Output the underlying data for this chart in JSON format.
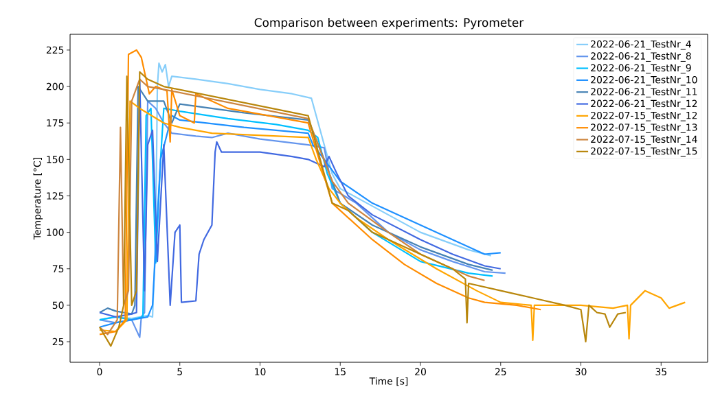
{
  "chart_data": {
    "type": "line",
    "title": "Comparison between experiments: Pyrometer",
    "xlabel": "Time [s]",
    "ylabel": "Temperature [°C]",
    "xlim": [
      -1.84,
      37.9
    ],
    "ylim": [
      10.9,
      235.8
    ],
    "xticks": [
      0,
      5,
      10,
      15,
      20,
      25,
      30,
      35
    ],
    "yticks": [
      25,
      50,
      75,
      100,
      125,
      150,
      175,
      200,
      225
    ],
    "legend": "top right",
    "series": [
      {
        "name": "2022-06-21_TestNr_4",
        "color": "#87cefa",
        "x": [
          0,
          1,
          2,
          3,
          3.3,
          3.5,
          3.6,
          3.7,
          3.9,
          4.1,
          4.3,
          4.5,
          6,
          8,
          10,
          12,
          13.2,
          13.5,
          14,
          14.5,
          15,
          16,
          18,
          20,
          22,
          23,
          24.4
        ],
        "values": [
          40,
          42,
          41,
          43,
          42,
          100,
          200,
          216,
          210,
          215,
          200,
          207,
          205,
          202,
          198,
          195,
          192,
          180,
          160,
          140,
          130,
          124,
          112,
          100,
          92,
          88,
          84
        ]
      },
      {
        "name": "2022-06-21_TestNr_8",
        "color": "#6495ed",
        "x": [
          0,
          1,
          2,
          2.5,
          2.6,
          2.8,
          3.0,
          3.5,
          4.0,
          4.5,
          6,
          7,
          8,
          10,
          13,
          14,
          14.5,
          16,
          18,
          20,
          22,
          24,
          25.3
        ],
        "values": [
          40,
          38,
          40,
          28,
          42,
          45,
          190,
          185,
          175,
          168,
          166,
          165,
          168,
          164,
          160,
          158,
          130,
          120,
          100,
          88,
          80,
          73,
          72
        ]
      },
      {
        "name": "2022-06-21_TestNr_9",
        "color": "#00bfff",
        "x": [
          0,
          1,
          2,
          2.7,
          2.9,
          3.2,
          3.5,
          3.8,
          4.0,
          5,
          8,
          11,
          13,
          13.6,
          14.2,
          15,
          17,
          20,
          23,
          24.5
        ],
        "values": [
          40,
          42,
          40,
          42,
          180,
          185,
          79,
          150,
          185,
          183,
          178,
          174,
          170,
          165,
          140,
          120,
          100,
          80,
          72,
          70
        ]
      },
      {
        "name": "2022-06-21_TestNr_10",
        "color": "#1e90ff",
        "x": [
          0,
          1,
          2,
          3,
          3.3,
          3.8,
          4.5,
          5,
          9,
          13,
          13.3,
          14,
          15,
          17,
          20,
          22,
          24,
          25
        ],
        "values": [
          35,
          38,
          40,
          42,
          50,
          150,
          180,
          177,
          172,
          168,
          160,
          150,
          135,
          120,
          105,
          95,
          85,
          86
        ]
      },
      {
        "name": "2022-06-21_TestNr_11",
        "color": "#4682b4",
        "x": [
          0,
          0.5,
          1,
          2,
          2.2,
          2.4,
          2.7,
          3,
          4,
          4.5,
          5,
          9,
          13,
          14,
          15,
          17,
          20,
          23,
          24.5
        ],
        "values": [
          45,
          48,
          46,
          44,
          50,
          200,
          195,
          190,
          190,
          175,
          188,
          182,
          177,
          150,
          120,
          105,
          90,
          78,
          74
        ]
      },
      {
        "name": "2022-06-21_TestNr_12",
        "color": "#4169e1",
        "x": [
          0,
          1,
          2,
          2.3,
          2.5,
          2.8,
          3.0,
          3.3,
          3.6,
          4.0,
          4.4,
          4.7,
          5.0,
          5.1,
          6.0,
          6.2,
          6.5,
          7.0,
          7.2,
          7.3,
          7.6,
          10,
          12,
          13,
          14,
          14.3,
          14.8,
          15.5,
          17,
          20,
          22,
          24,
          25
        ],
        "values": [
          45,
          42,
          44,
          45,
          205,
          60,
          160,
          170,
          80,
          160,
          50,
          100,
          105,
          52,
          53,
          85,
          95,
          105,
          155,
          162,
          155,
          155,
          152,
          150,
          145,
          152,
          140,
          125,
          112,
          95,
          85,
          77,
          75
        ]
      },
      {
        "name": "2022-07-15_TestNr_12",
        "color": "#ffa500",
        "x": [
          0,
          1,
          1.7,
          1.9,
          2.5,
          4,
          5,
          7,
          13,
          13.5,
          14.3,
          15,
          16,
          18,
          21,
          23.5,
          25,
          26.9,
          27,
          27.1,
          28,
          30,
          32,
          32.9,
          33,
          33.1,
          34,
          35,
          35.5,
          36.5
        ],
        "values": [
          33,
          32,
          40,
          190,
          185,
          175,
          172,
          168,
          165,
          150,
          130,
          120,
          110,
          95,
          75,
          60,
          52,
          50,
          26,
          50,
          50,
          50,
          48,
          50,
          27,
          50,
          60,
          55,
          48,
          52
        ]
      },
      {
        "name": "2022-07-15_TestNr_13",
        "color": "#ff8c00",
        "x": [
          0,
          1,
          1.6,
          1.8,
          2.3,
          2.6,
          3.1,
          3.5,
          4.2,
          4.4,
          4.5,
          5,
          5.9,
          6,
          8,
          13,
          14.5,
          17,
          19,
          21,
          23,
          24,
          26,
          27.5
        ],
        "values": [
          30,
          32,
          40,
          222,
          225,
          220,
          195,
          200,
          197,
          162,
          198,
          180,
          175,
          195,
          185,
          175,
          120,
          95,
          78,
          65,
          55,
          52,
          50,
          47
        ]
      },
      {
        "name": "2022-07-15_TestNr_14",
        "color": "#cd853f",
        "x": [
          0,
          0.5,
          1.1,
          1.3,
          1.5,
          1.8,
          2.0,
          2.5,
          3,
          4,
          13,
          14.5,
          15.5,
          18,
          20,
          22,
          23,
          24
        ],
        "values": [
          35,
          30,
          40,
          172,
          50,
          60,
          190,
          205,
          200,
          198,
          178,
          135,
          120,
          100,
          85,
          75,
          70,
          67
        ]
      },
      {
        "name": "2022-07-15_TestNr_15",
        "color": "#b8860b",
        "x": [
          0,
          0.7,
          1.2,
          1.5,
          1.7,
          2.0,
          2.3,
          2.5,
          3,
          4,
          13,
          14.5,
          15.5,
          17,
          20,
          22,
          22.8,
          22.9,
          23,
          25,
          27,
          29,
          30,
          30.3,
          30.5,
          31,
          31.5,
          31.8,
          32.3,
          32.8
        ],
        "values": [
          35,
          22,
          35,
          50,
          207,
          50,
          60,
          210,
          205,
          200,
          180,
          120,
          115,
          100,
          85,
          75,
          68,
          38,
          65,
          60,
          55,
          50,
          47,
          25,
          50,
          45,
          44,
          35,
          44,
          45
        ]
      }
    ]
  }
}
